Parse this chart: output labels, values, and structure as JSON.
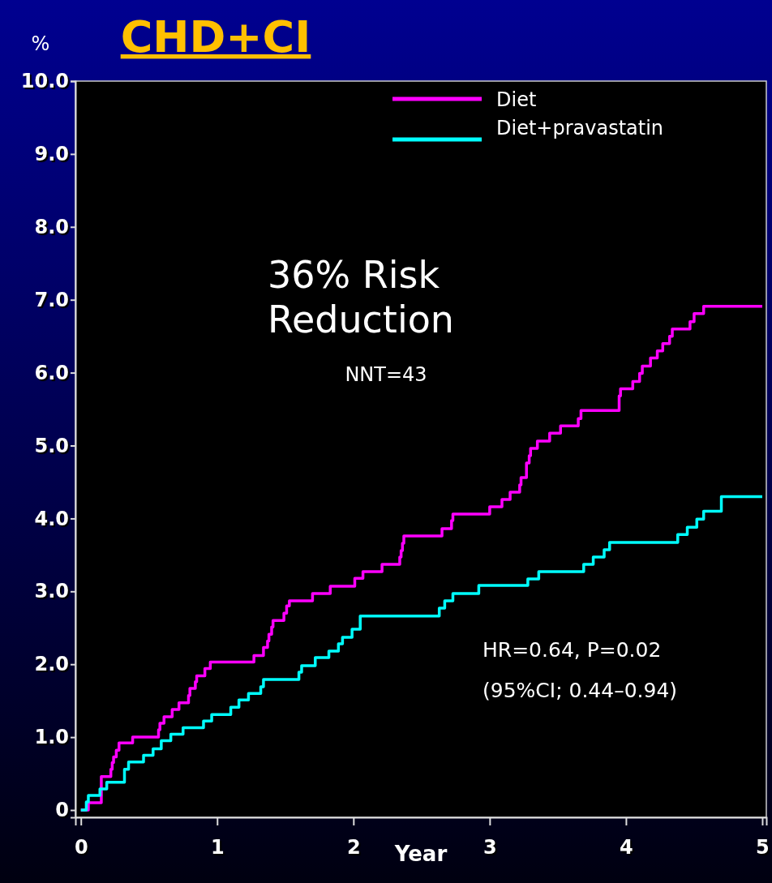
{
  "chart_data": {
    "type": "step",
    "title": "CHD+CI",
    "xlabel": "Year",
    "ylabel": "%",
    "xlim": [
      -0.04,
      5.03
    ],
    "ylim": [
      -0.1,
      10.0
    ],
    "xticks": [
      0,
      1,
      2,
      3,
      4,
      5
    ],
    "yticks": [
      0,
      {
        "value": 1,
        "label": "1.0"
      },
      {
        "value": 2,
        "label": "2.0"
      },
      {
        "value": 3,
        "label": "3.0"
      },
      {
        "value": 4,
        "label": "4.0"
      },
      {
        "value": 5,
        "label": "5.0"
      },
      {
        "value": 6,
        "label": "6.0"
      },
      {
        "value": 7,
        "label": "7.0"
      },
      {
        "value": 8,
        "label": "8.0"
      },
      {
        "value": 9,
        "label": "9.0"
      },
      {
        "value": 10,
        "label": "10.0"
      }
    ],
    "legend": "top right",
    "grid": false,
    "annotations": [
      "36% Risk Reduction",
      "NNT=43",
      "HR=0.64, P=0.02",
      "(95%CI; 0.44–0.94)"
    ],
    "series": [
      {
        "name": "Diet",
        "color": "#ff00ff",
        "x": [
          0,
          0.055,
          0.15,
          0.22,
          0.23,
          0.24,
          0.26,
          0.28,
          0.38,
          0.57,
          0.58,
          0.61,
          0.67,
          0.72,
          0.79,
          0.8,
          0.84,
          0.85,
          0.91,
          0.95,
          1.27,
          1.34,
          1.37,
          1.38,
          1.4,
          1.41,
          1.49,
          1.51,
          1.53,
          1.7,
          1.83,
          2.01,
          2.07,
          2.21,
          2.34,
          2.35,
          2.36,
          2.37,
          2.65,
          2.72,
          2.73,
          3.0,
          3.09,
          3.15,
          3.22,
          3.23,
          3.27,
          3.29,
          3.3,
          3.35,
          3.44,
          3.52,
          3.65,
          3.67,
          3.95,
          3.96,
          4.05,
          4.1,
          4.12,
          4.18,
          4.23,
          4.27,
          4.32,
          4.34,
          4.47,
          4.5,
          4.57,
          5.0
        ],
        "values": [
          0,
          0.1,
          0.46,
          0.56,
          0.65,
          0.73,
          0.82,
          0.92,
          1.0,
          1.1,
          1.19,
          1.28,
          1.38,
          1.47,
          1.57,
          1.67,
          1.76,
          1.84,
          1.94,
          2.03,
          2.12,
          2.23,
          2.32,
          2.41,
          2.51,
          2.6,
          2.7,
          2.8,
          2.87,
          2.97,
          3.07,
          3.18,
          3.27,
          3.37,
          3.47,
          3.56,
          3.66,
          3.76,
          3.86,
          3.97,
          4.06,
          4.16,
          4.26,
          4.36,
          4.46,
          4.56,
          4.76,
          4.86,
          4.96,
          5.06,
          5.17,
          5.27,
          5.37,
          5.48,
          5.68,
          5.78,
          5.88,
          5.99,
          6.09,
          6.2,
          6.3,
          6.4,
          6.5,
          6.6,
          6.7,
          6.81,
          6.91,
          6.91
        ]
      },
      {
        "name": "Diet+pravastatin",
        "color": "#00ffff",
        "x": [
          0,
          0.04,
          0.055,
          0.14,
          0.19,
          0.32,
          0.35,
          0.46,
          0.53,
          0.59,
          0.66,
          0.75,
          0.9,
          0.96,
          1.1,
          1.16,
          1.23,
          1.32,
          1.34,
          1.6,
          1.62,
          1.72,
          1.82,
          1.89,
          1.92,
          1.99,
          2.05,
          2.63,
          2.67,
          2.73,
          2.92,
          3.28,
          3.36,
          3.69,
          3.76,
          3.84,
          3.88,
          4.38,
          4.45,
          4.52,
          4.57,
          4.7,
          5.0
        ],
        "values": [
          0,
          0.11,
          0.2,
          0.29,
          0.38,
          0.56,
          0.66,
          0.75,
          0.84,
          0.95,
          1.04,
          1.13,
          1.22,
          1.31,
          1.41,
          1.51,
          1.6,
          1.69,
          1.79,
          1.89,
          1.98,
          2.09,
          2.18,
          2.28,
          2.37,
          2.48,
          2.66,
          2.77,
          2.87,
          2.97,
          3.08,
          3.17,
          3.27,
          3.37,
          3.47,
          3.57,
          3.67,
          3.78,
          3.88,
          3.99,
          4.1,
          4.3,
          4.3
        ]
      }
    ]
  }
}
